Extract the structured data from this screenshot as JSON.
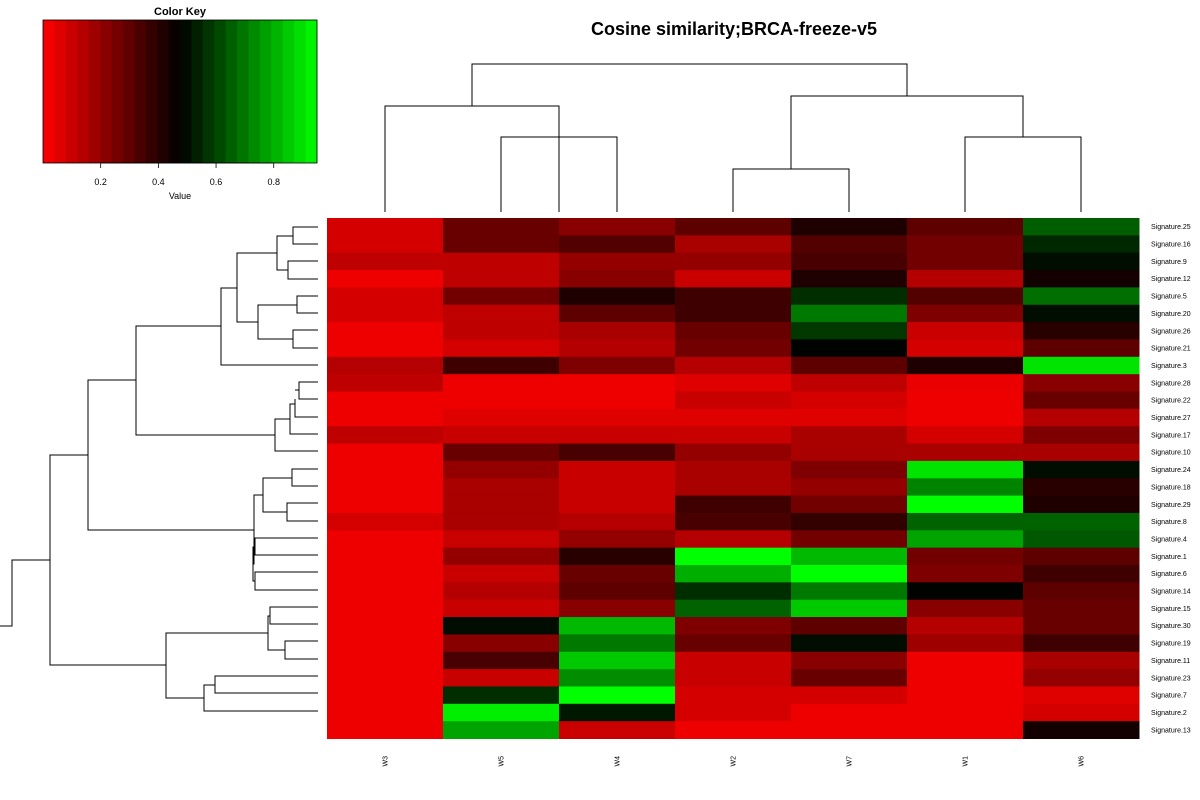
{
  "chart_data": {
    "type": "heatmap",
    "title": "Cosine similarity;BRCA-freeze-v5",
    "color_key": {
      "title": "Color Key",
      "xlabel": "Value",
      "ticks": [
        "0.2",
        "0.4",
        "0.6",
        "0.8"
      ],
      "tick_values": [
        0.2,
        0.4,
        0.6,
        0.8
      ],
      "range": [
        0,
        0.95
      ],
      "low_color": "#ff0000",
      "mid_color": "#000000",
      "high_color": "#00ff00"
    },
    "columns": [
      "W3",
      "W5",
      "W4",
      "W2",
      "W7",
      "W1",
      "W6"
    ],
    "rows": [
      "Signature.25",
      "Signature.16",
      "Signature.9",
      "Signature.12",
      "Signature.5",
      "Signature.20",
      "Signature.26",
      "Signature.21",
      "Signature.3",
      "Signature.28",
      "Signature.22",
      "Signature.27",
      "Signature.17",
      "Signature.10",
      "Signature.24",
      "Signature.18",
      "Signature.29",
      "Signature.8",
      "Signature.4",
      "Signature.1",
      "Signature.6",
      "Signature.14",
      "Signature.15",
      "Signature.30",
      "Signature.19",
      "Signature.11",
      "Signature.23",
      "Signature.7",
      "Signature.2",
      "Signature.13"
    ],
    "values": [
      [
        0.08,
        0.28,
        0.22,
        0.3,
        0.42,
        0.3,
        0.65
      ],
      [
        0.08,
        0.28,
        0.32,
        0.16,
        0.32,
        0.26,
        0.55
      ],
      [
        0.12,
        0.12,
        0.2,
        0.2,
        0.34,
        0.26,
        0.5
      ],
      [
        0.03,
        0.12,
        0.22,
        0.1,
        0.42,
        0.14,
        0.44
      ],
      [
        0.08,
        0.26,
        0.42,
        0.36,
        0.56,
        0.32,
        0.68
      ],
      [
        0.08,
        0.12,
        0.3,
        0.36,
        0.7,
        0.24,
        0.5
      ],
      [
        0.03,
        0.12,
        0.16,
        0.28,
        0.58,
        0.1,
        0.4
      ],
      [
        0.03,
        0.08,
        0.14,
        0.26,
        0.48,
        0.08,
        0.3
      ],
      [
        0.14,
        0.36,
        0.24,
        0.14,
        0.3,
        0.42,
        0.9
      ],
      [
        0.12,
        0.03,
        0.03,
        0.06,
        0.12,
        0.04,
        0.22
      ],
      [
        0.03,
        0.03,
        0.03,
        0.1,
        0.08,
        0.03,
        0.28
      ],
      [
        0.03,
        0.06,
        0.06,
        0.06,
        0.06,
        0.03,
        0.14
      ],
      [
        0.12,
        0.1,
        0.1,
        0.1,
        0.16,
        0.08,
        0.24
      ],
      [
        0.03,
        0.28,
        0.34,
        0.2,
        0.16,
        0.16,
        0.16
      ],
      [
        0.03,
        0.2,
        0.1,
        0.16,
        0.24,
        0.9,
        0.5
      ],
      [
        0.03,
        0.16,
        0.1,
        0.16,
        0.2,
        0.72,
        0.4
      ],
      [
        0.03,
        0.16,
        0.1,
        0.36,
        0.26,
        0.95,
        0.42
      ],
      [
        0.08,
        0.16,
        0.14,
        0.34,
        0.38,
        0.66,
        0.66
      ],
      [
        0.03,
        0.1,
        0.2,
        0.14,
        0.26,
        0.78,
        0.64
      ],
      [
        0.03,
        0.2,
        0.4,
        0.95,
        0.82,
        0.26,
        0.3
      ],
      [
        0.03,
        0.1,
        0.28,
        0.8,
        0.95,
        0.24,
        0.36
      ],
      [
        0.03,
        0.14,
        0.3,
        0.56,
        0.7,
        0.48,
        0.3
      ],
      [
        0.03,
        0.1,
        0.22,
        0.66,
        0.85,
        0.22,
        0.28
      ],
      [
        0.03,
        0.5,
        0.82,
        0.24,
        0.3,
        0.14,
        0.28
      ],
      [
        0.03,
        0.22,
        0.7,
        0.28,
        0.5,
        0.18,
        0.36
      ],
      [
        0.03,
        0.34,
        0.85,
        0.1,
        0.22,
        0.03,
        0.16
      ],
      [
        0.03,
        0.1,
        0.74,
        0.1,
        0.28,
        0.03,
        0.2
      ],
      [
        0.03,
        0.56,
        0.95,
        0.08,
        0.08,
        0.03,
        0.06
      ],
      [
        0.03,
        0.92,
        0.52,
        0.08,
        0.03,
        0.03,
        0.08
      ],
      [
        0.03,
        0.78,
        0.1,
        0.03,
        0.03,
        0.03,
        0.44
      ]
    ]
  }
}
